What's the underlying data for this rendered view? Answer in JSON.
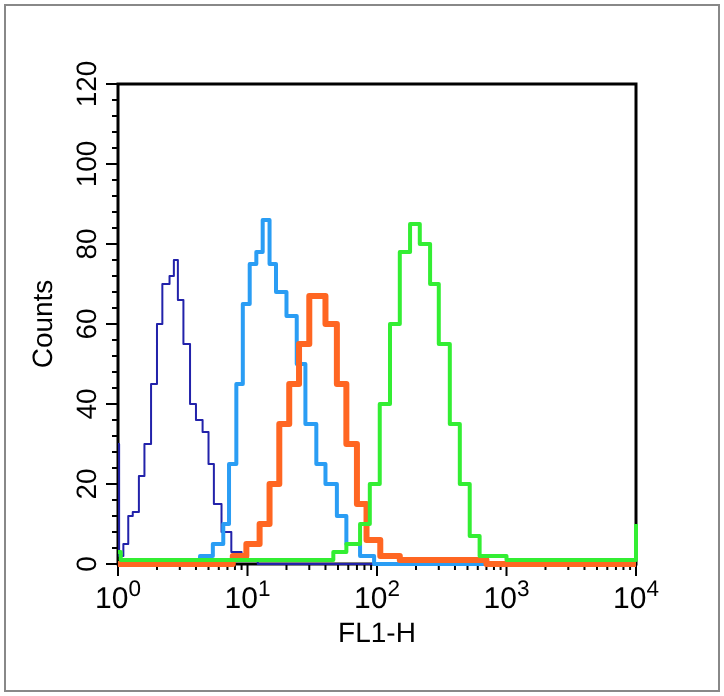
{
  "chart_data": {
    "type": "step",
    "xlabel": "FL1-H",
    "ylabel": "Counts",
    "log": "x",
    "xlim": [
      1,
      10000
    ],
    "ylim": [
      0,
      120
    ],
    "xticks": [
      {
        "value": 1,
        "label": "10$^{0}$"
      },
      {
        "value": 2,
        "label": null
      },
      {
        "value": 3,
        "label": null
      },
      {
        "value": 4,
        "label": null
      },
      {
        "value": 5,
        "label": null
      },
      {
        "value": 6,
        "label": null
      },
      {
        "value": 7,
        "label": null
      },
      {
        "value": 8,
        "label": null
      },
      {
        "value": 9,
        "label": null
      },
      {
        "value": 10,
        "label": "10$^{1}$"
      },
      {
        "value": 20,
        "label": null
      },
      {
        "value": 30,
        "label": null
      },
      {
        "value": 40,
        "label": null
      },
      {
        "value": 50,
        "label": null
      },
      {
        "value": 60,
        "label": null
      },
      {
        "value": 70,
        "label": null
      },
      {
        "value": 80,
        "label": null
      },
      {
        "value": 90,
        "label": null
      },
      {
        "value": 100,
        "label": "10$^{2}$"
      },
      {
        "value": 200,
        "label": null
      },
      {
        "value": 300,
        "label": null
      },
      {
        "value": 400,
        "label": null
      },
      {
        "value": 500,
        "label": null
      },
      {
        "value": 600,
        "label": null
      },
      {
        "value": 700,
        "label": null
      },
      {
        "value": 800,
        "label": null
      },
      {
        "value": 900,
        "label": null
      },
      {
        "value": 1000,
        "label": "10$^{3}$"
      },
      {
        "value": 2000,
        "label": null
      },
      {
        "value": 3000,
        "label": null
      },
      {
        "value": 4000,
        "label": null
      },
      {
        "value": 5000,
        "label": null
      },
      {
        "value": 6000,
        "label": null
      },
      {
        "value": 7000,
        "label": null
      },
      {
        "value": 8000,
        "label": null
      },
      {
        "value": 9000,
        "label": null
      },
      {
        "value": 10000,
        "label": "10$^{4}$"
      }
    ],
    "yticks": [
      0,
      {
        "value": 4,
        "label": null
      },
      {
        "value": 8,
        "label": null
      },
      {
        "value": 12,
        "label": null
      },
      {
        "value": 16,
        "label": null
      },
      20,
      {
        "value": 24,
        "label": null
      },
      {
        "value": 28,
        "label": null
      },
      {
        "value": 32,
        "label": null
      },
      {
        "value": 36,
        "label": null
      },
      40,
      {
        "value": 44,
        "label": null
      },
      {
        "value": 48,
        "label": null
      },
      {
        "value": 52,
        "label": null
      },
      {
        "value": 56,
        "label": null
      },
      60,
      {
        "value": 64,
        "label": null
      },
      {
        "value": 68,
        "label": null
      },
      {
        "value": 72,
        "label": null
      },
      {
        "value": 76,
        "label": null
      },
      80,
      {
        "value": 84,
        "label": null
      },
      {
        "value": 88,
        "label": null
      },
      {
        "value": 92,
        "label": null
      },
      {
        "value": 96,
        "label": null
      },
      100,
      {
        "value": 104,
        "label": null
      },
      {
        "value": 108,
        "label": null
      },
      {
        "value": 112,
        "label": null
      },
      {
        "value": 116,
        "label": null
      },
      120
    ],
    "series": [
      {
        "color": "#2222aa",
        "x": [
          1,
          1.02,
          1.1,
          1.2,
          1.3,
          1.45,
          1.6,
          1.8,
          2,
          2.2,
          2.5,
          2.7,
          2.9,
          3.2,
          3.6,
          4,
          4.5,
          5,
          5.5,
          6.3,
          7.5,
          9,
          12,
          20,
          50,
          100,
          1000,
          10000
        ],
        "values": [
          30,
          2,
          5,
          12,
          13,
          22,
          30,
          45,
          60,
          70,
          72,
          76,
          66,
          55,
          40,
          36,
          33,
          25,
          15,
          8,
          3,
          1,
          0,
          0,
          0,
          0,
          0,
          0
        ]
      },
      {
        "color": "#2a9df4",
        "x": [
          1,
          3,
          4.3,
          5.4,
          6.5,
          7.2,
          8.2,
          9.2,
          10.4,
          11.7,
          13.1,
          14.8,
          16.6,
          20,
          24,
          28,
          34,
          40,
          49,
          58,
          74,
          95,
          200,
          1000,
          10000
        ],
        "values": [
          0,
          0,
          2,
          5,
          10,
          25,
          45,
          65,
          75,
          78,
          86,
          75,
          68,
          62,
          50,
          35,
          25,
          20,
          12,
          5,
          2,
          0,
          0,
          0,
          0
        ]
      },
      {
        "color": "#ff6622",
        "x": [
          1,
          5,
          7.7,
          9.8,
          12.4,
          14.8,
          17.6,
          21,
          25,
          30,
          34,
          40,
          49,
          58,
          70,
          83,
          106,
          150,
          490,
          700,
          10000
        ],
        "values": [
          0,
          0,
          2,
          5,
          10,
          20,
          35,
          45,
          55,
          67,
          67,
          60,
          45,
          30,
          15,
          6,
          2,
          1,
          1,
          0,
          0
        ]
      },
      {
        "color": "#33ee33",
        "x": [
          1,
          1.05,
          2,
          10,
          30,
          46,
          58,
          74,
          88,
          105,
          126,
          150,
          180,
          214,
          257,
          300,
          365,
          436,
          520,
          620,
          1000,
          5000,
          9800,
          10000
        ],
        "values": [
          3,
          1,
          1,
          1,
          1,
          3,
          5,
          10,
          20,
          40,
          60,
          78,
          85,
          80,
          70,
          55,
          35,
          20,
          7,
          2,
          1,
          1,
          1,
          10
        ]
      }
    ]
  }
}
